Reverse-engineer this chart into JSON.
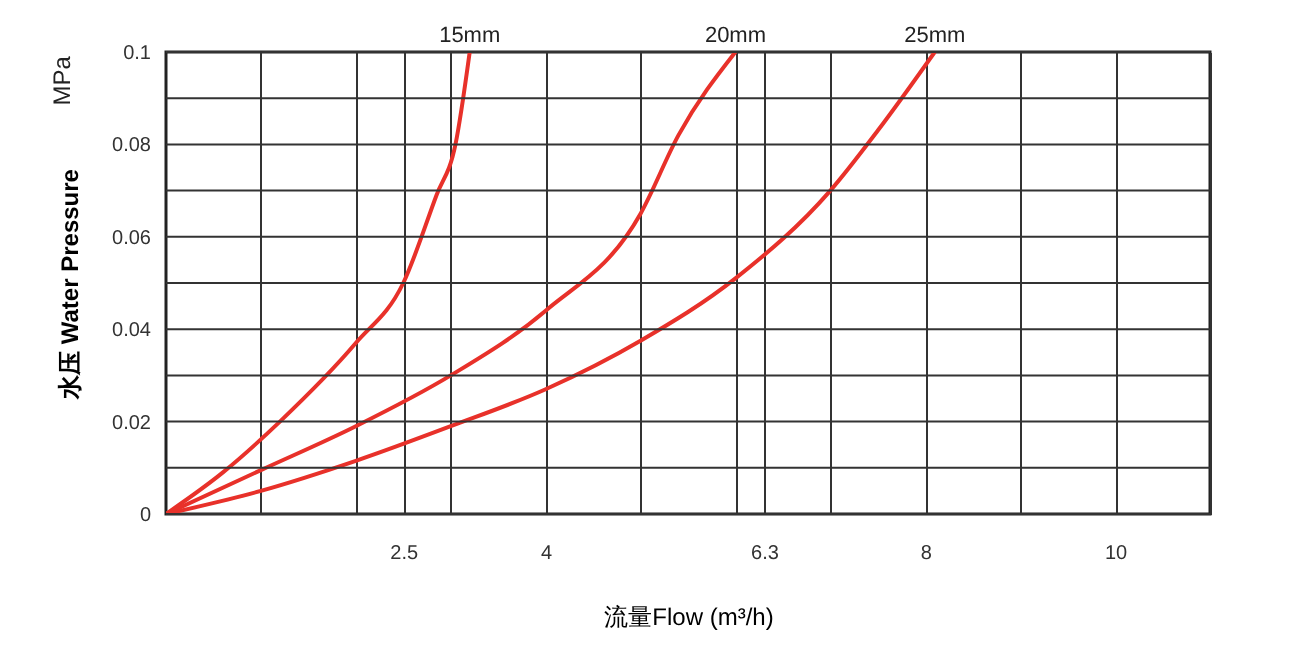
{
  "chart_data": {
    "type": "line",
    "xlabel": "流量Flow (m³/h)",
    "ylabel": "水压  Water Pressure",
    "annotations": [
      "MPa"
    ],
    "xlim": [
      0,
      11
    ],
    "xticks": [
      {
        "value": 1,
        "label": null
      },
      {
        "value": 2,
        "label": null
      },
      2.5,
      {
        "value": 3,
        "label": null
      },
      4,
      {
        "value": 5,
        "label": null
      },
      {
        "value": 6,
        "label": null
      },
      6.3,
      {
        "value": 7,
        "label": null
      },
      8,
      {
        "value": 9,
        "label": null
      },
      10,
      {
        "value": 11,
        "label": null
      }
    ],
    "ylim": [
      0,
      0.1
    ],
    "yticks": [
      0,
      {
        "value": 0.01,
        "label": null
      },
      0.02,
      {
        "value": 0.03,
        "label": null
      },
      0.04,
      {
        "value": 0.05,
        "label": null
      },
      0.06,
      {
        "value": 0.07,
        "label": null
      },
      0.08,
      {
        "value": 0.09,
        "label": null
      },
      0.1
    ],
    "grid": true,
    "legend": false,
    "series": [
      {
        "name": "15mm",
        "color": "#e8312a",
        "x": [
          0,
          0.6,
          1.2,
          2.0,
          2.5,
          2.85,
          3.05,
          3.2
        ],
        "values": [
          0,
          0.009,
          0.02,
          0.037,
          0.05,
          0.069,
          0.08,
          0.1
        ]
      },
      {
        "name": "20mm",
        "color": "#e8312a",
        "x": [
          0,
          1,
          2,
          3,
          4,
          5,
          5.4,
          6
        ],
        "values": [
          0,
          0.0095,
          0.019,
          0.03,
          0.044,
          0.065,
          0.082,
          0.1
        ]
      },
      {
        "name": "25mm",
        "color": "#e8312a",
        "x": [
          0,
          1,
          2,
          3,
          4,
          5,
          6,
          7,
          7.5,
          8.1
        ],
        "values": [
          0,
          0.005,
          0.0115,
          0.019,
          0.027,
          0.0375,
          0.051,
          0.07,
          0.083,
          0.1
        ]
      }
    ]
  }
}
